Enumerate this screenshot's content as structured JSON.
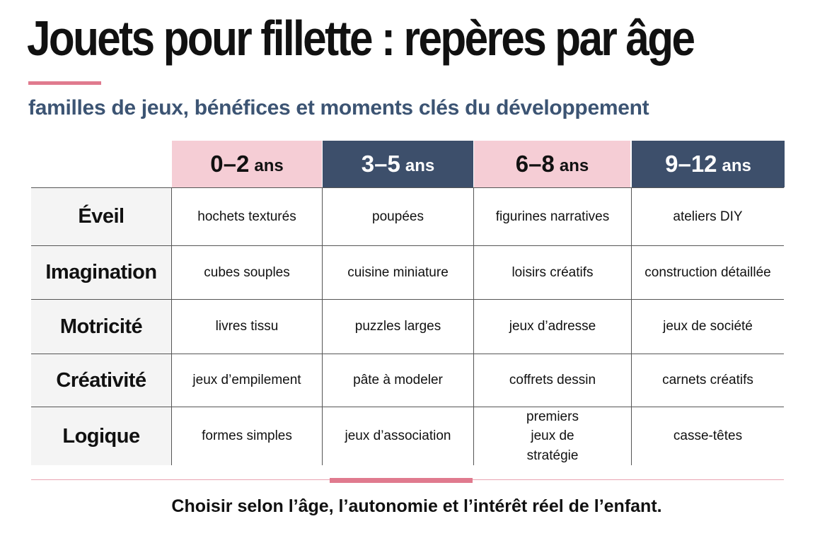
{
  "title": "Jouets pour fillette : repères par âge",
  "subtitle": "familles de jeux, bénéfices et moments clés du développement",
  "colors": {
    "accent_pink": "#e07a8e",
    "header_light": "#f5cdd5",
    "header_dark": "#3d4f6b",
    "subtitle": "#3c5473"
  },
  "age_groups": [
    {
      "range": "0–2",
      "unit": "ans"
    },
    {
      "range": "3–5",
      "unit": "ans"
    },
    {
      "range": "6–8",
      "unit": "ans"
    },
    {
      "range": "9–12",
      "unit": "ans"
    }
  ],
  "rows": [
    {
      "label": "Éveil",
      "cells": [
        "hochets texturés",
        "poupées",
        "figurines narratives",
        "ateliers DIY"
      ]
    },
    {
      "label": "Imagination",
      "cells": [
        "cubes souples",
        "cuisine miniature",
        "loisirs créatifs",
        "construction détaillée"
      ]
    },
    {
      "label": "Motricité",
      "cells": [
        "livres tissu",
        "puzzles larges",
        "jeux d’adresse",
        "jeux de société"
      ]
    },
    {
      "label": "Créativité",
      "cells": [
        "jeux d’empilement",
        "pâte à modeler",
        "coffrets dessin",
        "carnets créatifs"
      ]
    },
    {
      "label": "Logique",
      "cells": [
        "formes simples",
        "jeux d’association",
        "premiers jeux de stratégie",
        "casse-têtes"
      ]
    }
  ],
  "footer": "Choisir selon l’âge, l’autonomie et l’intérêt réel de l’enfant."
}
